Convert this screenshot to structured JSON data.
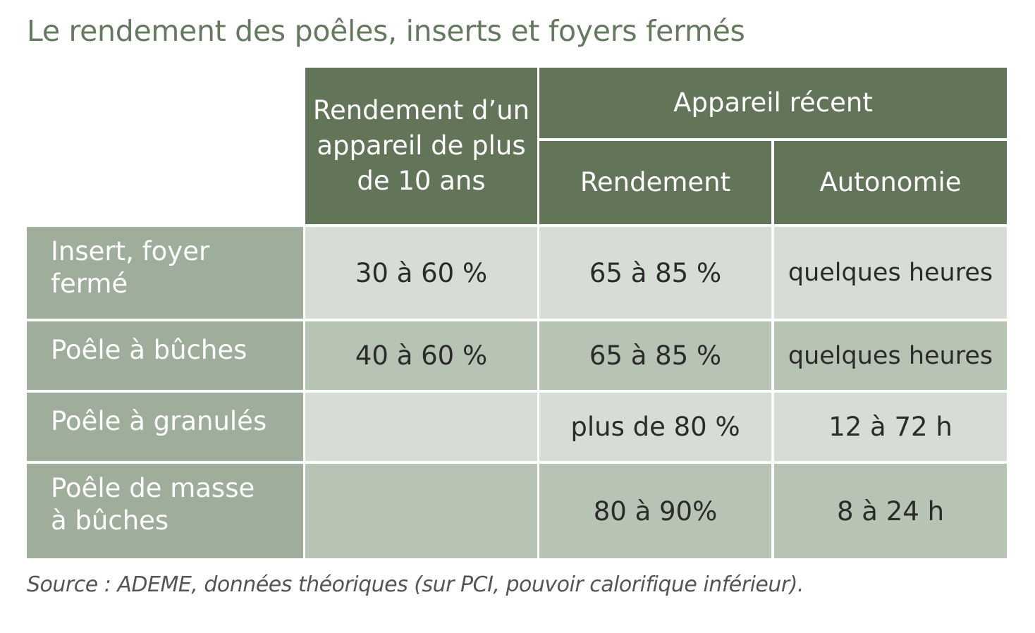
{
  "title": "Le rendement des poêles, inserts et foyers fermés",
  "table": {
    "header": {
      "old_yield": "Rendement d’un appareil de plus de 10 ans",
      "recent_group": "Appareil récent",
      "recent_yield": "Rendement",
      "recent_autonomy": "Autonomie"
    },
    "rows": [
      {
        "label": "Insert, foyer fermé",
        "old_yield": "30 à 60 %",
        "recent_yield": "65 à 85 %",
        "autonomy": "quelques heures"
      },
      {
        "label": "Poêle à bûches",
        "old_yield": "40 à 60 %",
        "recent_yield": "65 à 85 %",
        "autonomy": "quelques heures"
      },
      {
        "label": "Poêle à granulés",
        "old_yield": "",
        "recent_yield": "plus de 80 %",
        "autonomy": "12 à 72 h"
      },
      {
        "label": "Poêle de masse à bûches",
        "old_yield": "",
        "recent_yield": "80 à 90%",
        "autonomy": "8 à 24 h"
      }
    ]
  },
  "source": "Source : ADEME, données théoriques (sur PCI, pouvoir calorifique inférieur)."
}
